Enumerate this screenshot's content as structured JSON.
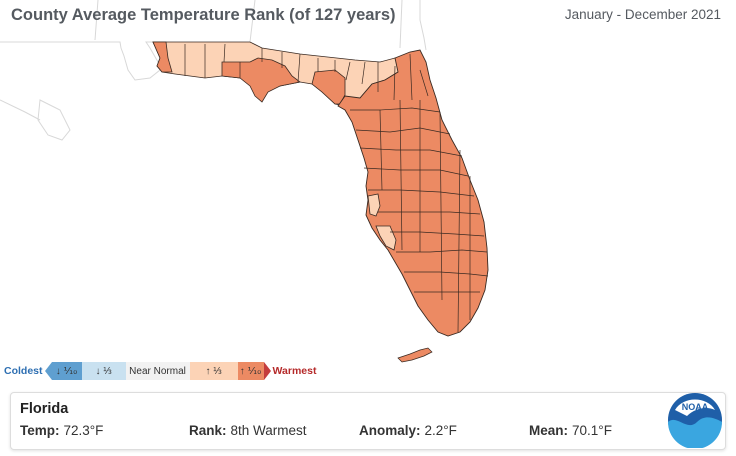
{
  "header": {
    "title": "County Average Temperature Rank (of 127 years)",
    "period": "January - December 2021"
  },
  "legend": {
    "coldest": "Coldest",
    "bottom_tenth": "↓ ⅒",
    "bottom_third": "↓ ⅓",
    "near_normal": "Near Normal",
    "top_third": "↑ ⅓",
    "top_tenth": "↑ ⅒",
    "warmest": "Warmest",
    "colors": {
      "bottom_tenth": "#5f9fd0",
      "bottom_third": "#c9e1f0",
      "near_normal": "#f2f2f2",
      "top_third": "#fcd3b6",
      "top_tenth": "#ec8a63"
    }
  },
  "map": {
    "state": "Florida",
    "warmest_tenth_color": "#ec8a63",
    "upper_third_color": "#fcd3b6",
    "county_border_color": "#3a2a22"
  },
  "summary": {
    "name": "Florida",
    "temp_label": "Temp:",
    "temp_value": "72.3°F",
    "rank_label": "Rank:",
    "rank_value": "8th Warmest",
    "anomaly_label": "Anomaly:",
    "anomaly_value": "2.2°F",
    "mean_label": "Mean:",
    "mean_value": "70.1°F"
  },
  "logo": {
    "text": "NOAA",
    "icon": "noaa-logo-icon"
  }
}
